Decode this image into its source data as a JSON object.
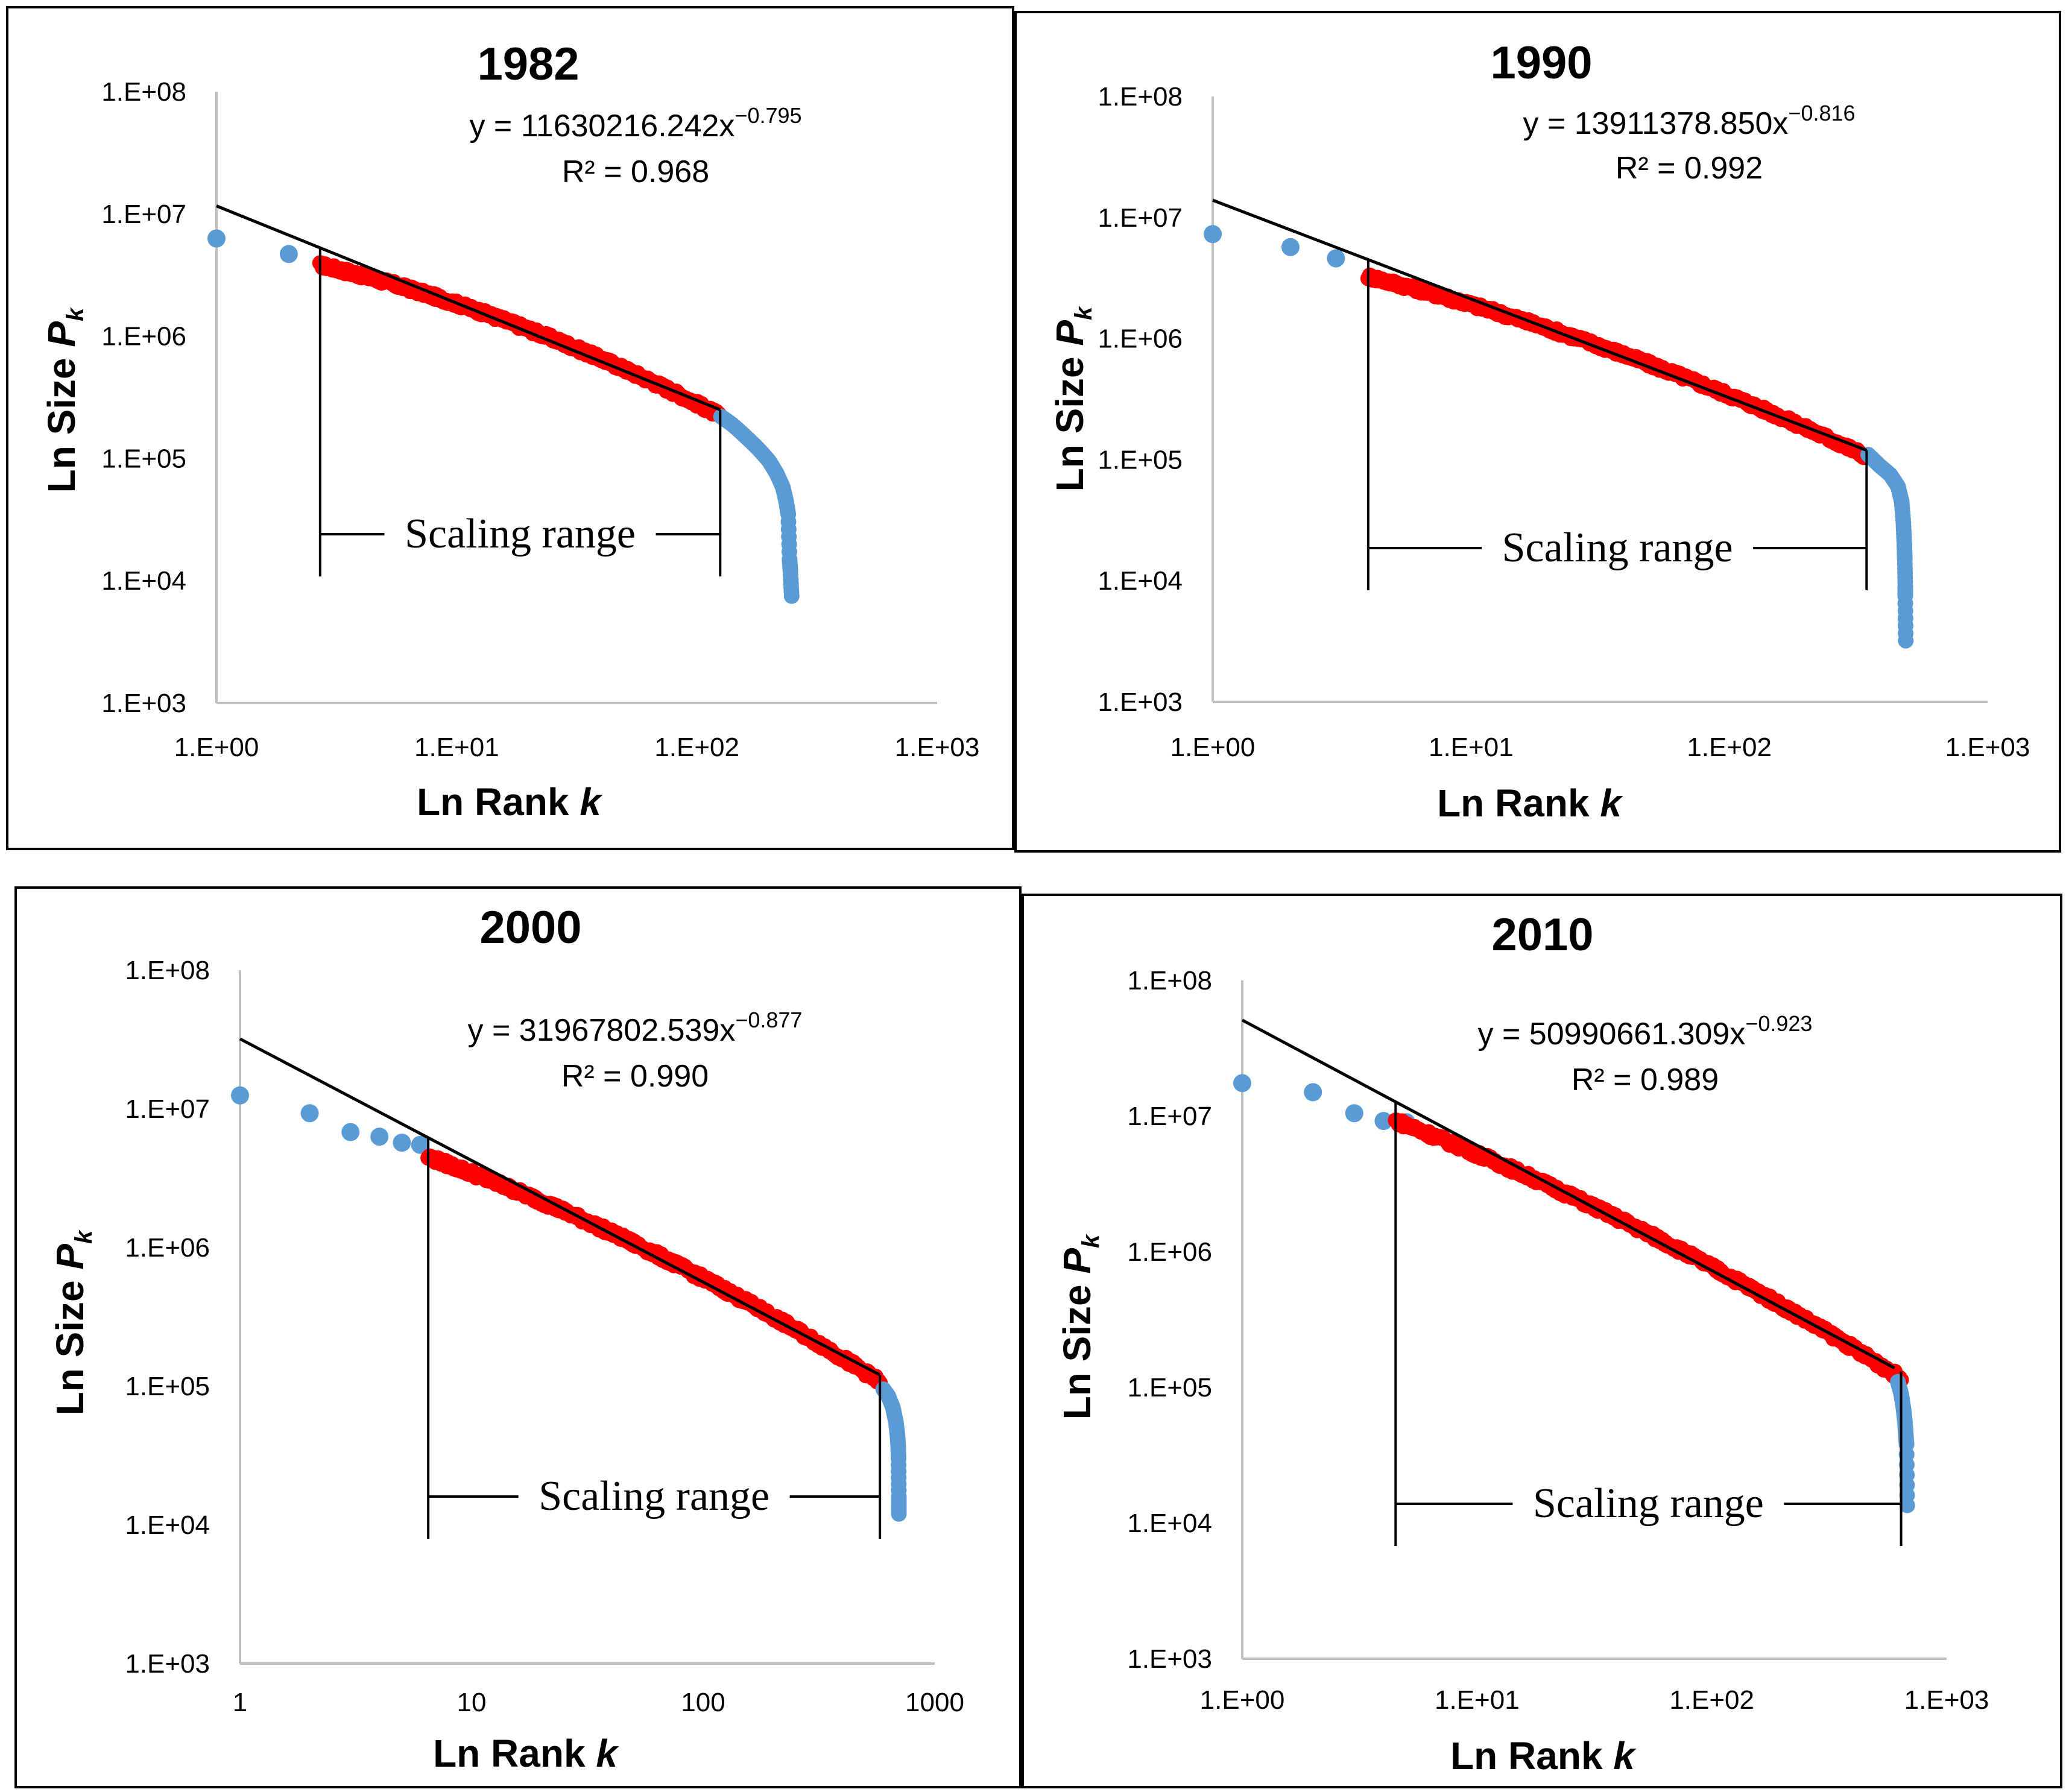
{
  "figure": {
    "colors": {
      "outer": "#5b9bd5",
      "scaling": "#ff0000",
      "fit": "#000000",
      "axis": "#bfbfbf"
    },
    "panels": [
      {
        "title": "1982",
        "equation": {
          "prefix": "y = 11630216.242x",
          "exponent": "−0.795",
          "r2": "R² = 0.968"
        },
        "ylabel_main": "Ln Size ",
        "ylabel_var": "P",
        "ylabel_sub": "k",
        "xlabel_main": "Ln Rank ",
        "xlabel_var": "k",
        "y_ticks": [
          "1.E+03",
          "1.E+04",
          "1.E+05",
          "1.E+06",
          "1.E+07",
          "1.E+08"
        ],
        "x_ticks": [
          "1.E+00",
          "1.E+01",
          "1.E+02",
          "1.E+03"
        ],
        "scaling_label": "Scaling range"
      },
      {
        "title": "1990",
        "equation": {
          "prefix": "y = 13911378.850x",
          "exponent": "−0.816",
          "r2": "R² = 0.992"
        },
        "ylabel_main": "Ln Size ",
        "ylabel_var": "P",
        "ylabel_sub": "k",
        "xlabel_main": "Ln Rank ",
        "xlabel_var": "k",
        "y_ticks": [
          "1.E+03",
          "1.E+04",
          "1.E+05",
          "1.E+06",
          "1.E+07",
          "1.E+08"
        ],
        "x_ticks": [
          "1.E+00",
          "1.E+01",
          "1.E+02",
          "1.E+03"
        ],
        "scaling_label": "Scaling range"
      },
      {
        "title": "2000",
        "equation": {
          "prefix": "y = 31967802.539x",
          "exponent": "−0.877",
          "r2": "R² = 0.990"
        },
        "ylabel_main": "Ln Size ",
        "ylabel_var": "P",
        "ylabel_sub": "k",
        "xlabel_main": "Ln Rank ",
        "xlabel_var": "k",
        "y_ticks": [
          "1.E+03",
          "1.E+04",
          "1.E+05",
          "1.E+06",
          "1.E+07",
          "1.E+08"
        ],
        "x_ticks": [
          "1",
          "10",
          "100",
          "1000"
        ],
        "scaling_label": "Scaling range"
      },
      {
        "title": "2010",
        "equation": {
          "prefix": "y = 50990661.309x",
          "exponent": "−0.923",
          "r2": "R² = 0.989"
        },
        "ylabel_main": "Ln Size ",
        "ylabel_var": "P",
        "ylabel_sub": "k",
        "xlabel_main": "Ln Rank ",
        "xlabel_var": "k",
        "y_ticks": [
          "1.E+03",
          "1.E+04",
          "1.E+05",
          "1.E+06",
          "1.E+07",
          "1.E+08"
        ],
        "x_ticks": [
          "1.E+00",
          "1.E+01",
          "1.E+02",
          "1.E+03"
        ],
        "scaling_label": "Scaling range"
      }
    ]
  },
  "chart_data": [
    {
      "type": "scatter",
      "title": "1982",
      "xscale": "log",
      "yscale": "log",
      "xlabel": "Ln Rank k",
      "ylabel": "Ln Size Pk",
      "xlim": [
        1,
        1000
      ],
      "ylim": [
        1000,
        100000000
      ],
      "fit": {
        "a": 11630216.242,
        "b": -0.795,
        "r2": 0.968,
        "x_range": [
          1,
          125
        ]
      },
      "scaling_range": [
        2.7,
        125
      ],
      "max_rank": 250,
      "points": [
        [
          1,
          6300000
        ],
        [
          2,
          4700000
        ],
        [
          2.7,
          4600000
        ],
        [
          4,
          3700000
        ],
        [
          6,
          2700000
        ],
        [
          10,
          2000000
        ],
        [
          20,
          1300000
        ],
        [
          30,
          1000000
        ],
        [
          60,
          500000
        ],
        [
          100,
          280000
        ],
        [
          125,
          220000
        ],
        [
          160,
          150000
        ],
        [
          200,
          90000
        ],
        [
          230,
          50000
        ],
        [
          240,
          35000
        ],
        [
          245,
          15000
        ],
        [
          248,
          12000
        ],
        [
          250,
          7500
        ]
      ],
      "blue_head": [
        [
          1,
          6300000
        ],
        [
          2,
          4700000
        ]
      ],
      "blue_tail": [
        [
          126,
          220000
        ],
        [
          140,
          190000
        ],
        [
          160,
          150000
        ],
        [
          180,
          120000
        ],
        [
          200,
          95000
        ],
        [
          215,
          75000
        ],
        [
          228,
          58000
        ],
        [
          235,
          45000
        ],
        [
          240,
          35000
        ],
        [
          243,
          15000
        ],
        [
          245,
          12000
        ],
        [
          248,
          7500
        ]
      ]
    },
    {
      "type": "scatter",
      "title": "1990",
      "xscale": "log",
      "yscale": "log",
      "xlabel": "Ln Rank k",
      "ylabel": "Ln Size Pk",
      "xlim": [
        1,
        1000
      ],
      "ylim": [
        1000,
        100000000
      ],
      "fit": {
        "a": 13911378.85,
        "b": -0.816,
        "r2": 0.992,
        "x_range": [
          1,
          340
        ]
      },
      "scaling_range": [
        4,
        340
      ],
      "max_rank": 480,
      "blue_head": [
        [
          1,
          7300000
        ],
        [
          2,
          5700000
        ],
        [
          3,
          4600000
        ]
      ],
      "blue_tail": [
        [
          345,
          110000
        ],
        [
          380,
          90000
        ],
        [
          420,
          75000
        ],
        [
          450,
          60000
        ],
        [
          465,
          45000
        ],
        [
          472,
          30000
        ],
        [
          476,
          20000
        ],
        [
          478,
          15000
        ],
        [
          480,
          9000
        ],
        [
          480,
          7500
        ],
        [
          482,
          3200
        ]
      ]
    },
    {
      "type": "scatter",
      "title": "2000",
      "xscale": "log",
      "yscale": "log",
      "xlabel": "Ln Rank k",
      "ylabel": "Ln Size Pk",
      "xlim": [
        1,
        1000
      ],
      "ylim": [
        1000,
        100000000
      ],
      "fit": {
        "a": 31967802.539,
        "b": -0.877,
        "r2": 0.99,
        "x_range": [
          1,
          580
        ]
      },
      "scaling_range": [
        6.5,
        580
      ],
      "max_rank": 700,
      "blue_head": [
        [
          1,
          12500000
        ],
        [
          2,
          9300000
        ],
        [
          3,
          6800000
        ],
        [
          4,
          6300000
        ],
        [
          5,
          5700000
        ],
        [
          6,
          5500000
        ]
      ],
      "blue_tail": [
        [
          600,
          95000
        ],
        [
          630,
          85000
        ],
        [
          660,
          70000
        ],
        [
          680,
          55000
        ],
        [
          690,
          45000
        ],
        [
          695,
          38000
        ],
        [
          698,
          30000
        ],
        [
          700,
          16000
        ],
        [
          700,
          12000
        ]
      ]
    },
    {
      "type": "scatter",
      "title": "2010",
      "xscale": "log",
      "yscale": "log",
      "xlabel": "Ln Rank k",
      "ylabel": "Ln Size Pk",
      "xlim": [
        1,
        1000
      ],
      "ylim": [
        1000,
        100000000
      ],
      "fit": {
        "a": 50990661.309,
        "b": -0.923,
        "r2": 0.989,
        "x_range": [
          1,
          600
        ]
      },
      "scaling_range": [
        4.5,
        640
      ],
      "max_rank": 680,
      "blue_head": [
        [
          1,
          17500000
        ],
        [
          2,
          15000000
        ],
        [
          3,
          10500000
        ],
        [
          4,
          9200000
        ],
        [
          5,
          9000000
        ]
      ],
      "blue_tail": [
        [
          620,
          110000
        ],
        [
          640,
          90000
        ],
        [
          655,
          70000
        ],
        [
          665,
          55000
        ],
        [
          670,
          45000
        ],
        [
          675,
          38000
        ],
        [
          680,
          13500
        ]
      ]
    }
  ]
}
